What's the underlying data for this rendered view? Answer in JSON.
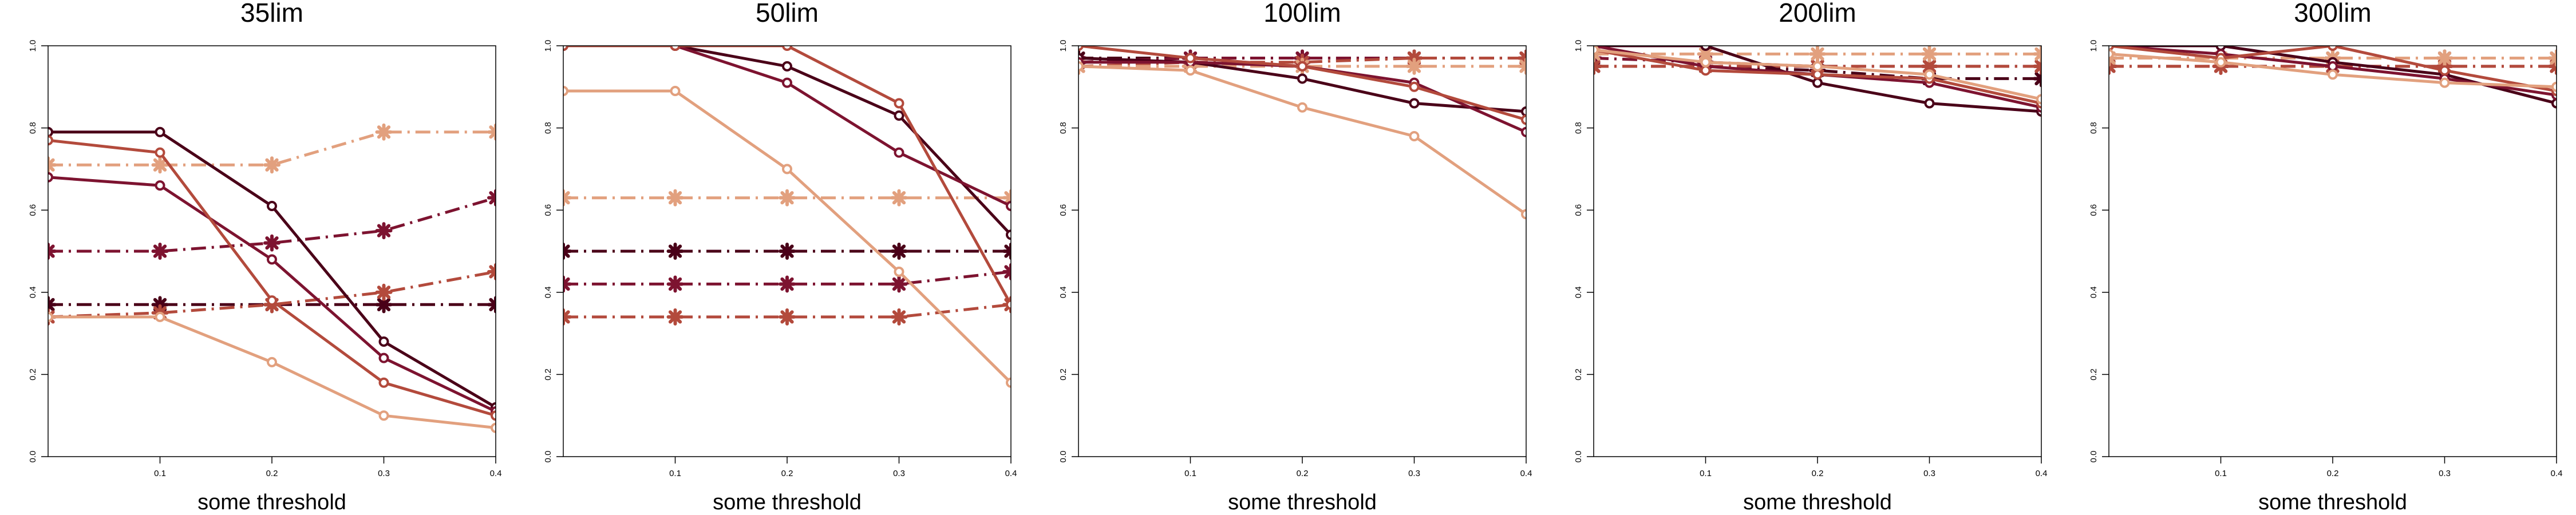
{
  "colors": {
    "s1": "#4a0018",
    "s2": "#7d1330",
    "s3": "#b34a3c",
    "s4": "#e2a07e"
  },
  "chart_data": [
    {
      "type": "line",
      "title": "35lim",
      "xlabel": "some threshold",
      "ylabel": "",
      "x": [
        0,
        0.1,
        0.2,
        0.3,
        0.4
      ],
      "xticks": [
        "0.1",
        "0.2",
        "0.3",
        "0.4"
      ],
      "ylim": [
        0,
        1
      ],
      "yticks": [
        "0.0",
        "0.2",
        "0.4",
        "0.6",
        "0.8",
        "1.0"
      ],
      "grid": false,
      "series": [
        {
          "style": "solid",
          "color": "s1",
          "marker": "circle",
          "values": [
            0.79,
            0.79,
            0.61,
            0.28,
            0.12
          ]
        },
        {
          "style": "solid",
          "color": "s2",
          "marker": "circle",
          "values": [
            0.68,
            0.66,
            0.48,
            0.24,
            0.11
          ]
        },
        {
          "style": "solid",
          "color": "s3",
          "marker": "circle",
          "values": [
            0.77,
            0.74,
            0.38,
            0.18,
            0.1
          ]
        },
        {
          "style": "solid",
          "color": "s4",
          "marker": "circle",
          "values": [
            0.34,
            0.34,
            0.23,
            0.1,
            0.07
          ]
        },
        {
          "style": "dashdot",
          "color": "s1",
          "marker": "star",
          "values": [
            0.37,
            0.37,
            0.37,
            0.37,
            0.37
          ]
        },
        {
          "style": "dashdot",
          "color": "s2",
          "marker": "star",
          "values": [
            0.5,
            0.5,
            0.52,
            0.55,
            0.63
          ]
        },
        {
          "style": "dashdot",
          "color": "s3",
          "marker": "star",
          "values": [
            0.34,
            0.35,
            0.37,
            0.4,
            0.45
          ]
        },
        {
          "style": "dashdot",
          "color": "s4",
          "marker": "star",
          "values": [
            0.71,
            0.71,
            0.71,
            0.79,
            0.79
          ]
        }
      ]
    },
    {
      "type": "line",
      "title": "50lim",
      "xlabel": "some threshold",
      "ylabel": "",
      "x": [
        0,
        0.1,
        0.2,
        0.3,
        0.4
      ],
      "xticks": [
        "0.1",
        "0.2",
        "0.3",
        "0.4"
      ],
      "ylim": [
        0,
        1
      ],
      "yticks": [
        "0.0",
        "0.2",
        "0.4",
        "0.6",
        "0.8",
        "1.0"
      ],
      "grid": false,
      "series": [
        {
          "style": "solid",
          "color": "s1",
          "marker": "circle",
          "values": [
            1.0,
            1.0,
            0.95,
            0.83,
            0.54
          ]
        },
        {
          "style": "solid",
          "color": "s2",
          "marker": "circle",
          "values": [
            1.0,
            1.0,
            0.91,
            0.74,
            0.61
          ]
        },
        {
          "style": "solid",
          "color": "s3",
          "marker": "circle",
          "values": [
            1.0,
            1.0,
            1.0,
            0.86,
            0.37
          ]
        },
        {
          "style": "solid",
          "color": "s4",
          "marker": "circle",
          "values": [
            0.89,
            0.89,
            0.7,
            0.45,
            0.18
          ]
        },
        {
          "style": "dashdot",
          "color": "s1",
          "marker": "star",
          "values": [
            0.5,
            0.5,
            0.5,
            0.5,
            0.5
          ]
        },
        {
          "style": "dashdot",
          "color": "s2",
          "marker": "star",
          "values": [
            0.42,
            0.42,
            0.42,
            0.42,
            0.45
          ]
        },
        {
          "style": "dashdot",
          "color": "s3",
          "marker": "star",
          "values": [
            0.34,
            0.34,
            0.34,
            0.34,
            0.37
          ]
        },
        {
          "style": "dashdot",
          "color": "s4",
          "marker": "star",
          "values": [
            0.63,
            0.63,
            0.63,
            0.63,
            0.63
          ]
        }
      ]
    },
    {
      "type": "line",
      "title": "100lim",
      "xlabel": "some threshold",
      "ylabel": "",
      "x": [
        0,
        0.1,
        0.2,
        0.3,
        0.4
      ],
      "xticks": [
        "0.1",
        "0.2",
        "0.3",
        "0.4"
      ],
      "ylim": [
        0,
        1
      ],
      "yticks": [
        "0.0",
        "0.2",
        "0.4",
        "0.6",
        "0.8",
        "1.0"
      ],
      "grid": false,
      "series": [
        {
          "style": "solid",
          "color": "s1",
          "marker": "circle",
          "values": [
            0.97,
            0.96,
            0.92,
            0.86,
            0.84
          ]
        },
        {
          "style": "solid",
          "color": "s2",
          "marker": "circle",
          "values": [
            0.96,
            0.96,
            0.95,
            0.91,
            0.79
          ]
        },
        {
          "style": "solid",
          "color": "s3",
          "marker": "circle",
          "values": [
            1.0,
            0.97,
            0.95,
            0.9,
            0.82
          ]
        },
        {
          "style": "solid",
          "color": "s4",
          "marker": "circle",
          "values": [
            0.95,
            0.94,
            0.85,
            0.78,
            0.59
          ]
        },
        {
          "style": "dashdot",
          "color": "s1",
          "marker": "star",
          "values": [
            0.97,
            0.97,
            0.97,
            0.97,
            0.97
          ]
        },
        {
          "style": "dashdot",
          "color": "s2",
          "marker": "star",
          "values": [
            0.96,
            0.97,
            0.97,
            0.97,
            0.97
          ]
        },
        {
          "style": "dashdot",
          "color": "s3",
          "marker": "star",
          "values": [
            0.95,
            0.96,
            0.96,
            0.97,
            0.97
          ]
        },
        {
          "style": "dashdot",
          "color": "s4",
          "marker": "star",
          "values": [
            0.95,
            0.95,
            0.95,
            0.95,
            0.95
          ]
        }
      ]
    },
    {
      "type": "line",
      "title": "200lim",
      "xlabel": "some threshold",
      "ylabel": "",
      "x": [
        0,
        0.1,
        0.2,
        0.3,
        0.4
      ],
      "xticks": [
        "0.1",
        "0.2",
        "0.3",
        "0.4"
      ],
      "ylim": [
        0,
        1
      ],
      "yticks": [
        "0.0",
        "0.2",
        "0.4",
        "0.6",
        "0.8",
        "1.0"
      ],
      "grid": false,
      "series": [
        {
          "style": "solid",
          "color": "s1",
          "marker": "circle",
          "values": [
            1.0,
            1.0,
            0.91,
            0.86,
            0.84
          ]
        },
        {
          "style": "solid",
          "color": "s2",
          "marker": "circle",
          "values": [
            1.0,
            0.95,
            0.93,
            0.91,
            0.85
          ]
        },
        {
          "style": "solid",
          "color": "s3",
          "marker": "circle",
          "values": [
            0.99,
            0.94,
            0.93,
            0.92,
            0.86
          ]
        },
        {
          "style": "solid",
          "color": "s4",
          "marker": "circle",
          "values": [
            0.99,
            0.96,
            0.95,
            0.93,
            0.87
          ]
        },
        {
          "style": "dashdot",
          "color": "s1",
          "marker": "star",
          "values": [
            0.95,
            0.95,
            0.94,
            0.92,
            0.92
          ]
        },
        {
          "style": "dashdot",
          "color": "s2",
          "marker": "star",
          "values": [
            0.97,
            0.96,
            0.95,
            0.95,
            0.95
          ]
        },
        {
          "style": "dashdot",
          "color": "s3",
          "marker": "star",
          "values": [
            0.95,
            0.95,
            0.95,
            0.95,
            0.95
          ]
        },
        {
          "style": "dashdot",
          "color": "s4",
          "marker": "star",
          "values": [
            0.98,
            0.98,
            0.98,
            0.98,
            0.98
          ]
        }
      ]
    },
    {
      "type": "line",
      "title": "300lim",
      "xlabel": "some threshold",
      "ylabel": "",
      "x": [
        0,
        0.1,
        0.2,
        0.3,
        0.4
      ],
      "xticks": [
        "0.1",
        "0.2",
        "0.3",
        "0.4"
      ],
      "ylim": [
        0,
        1
      ],
      "yticks": [
        "0.0",
        "0.2",
        "0.4",
        "0.6",
        "0.8",
        "1.0"
      ],
      "grid": false,
      "series": [
        {
          "style": "solid",
          "color": "s1",
          "marker": "circle",
          "values": [
            1.0,
            1.0,
            0.96,
            0.93,
            0.86
          ]
        },
        {
          "style": "solid",
          "color": "s2",
          "marker": "circle",
          "values": [
            1.0,
            0.98,
            0.95,
            0.92,
            0.88
          ]
        },
        {
          "style": "solid",
          "color": "s3",
          "marker": "circle",
          "values": [
            1.0,
            0.97,
            1.0,
            0.94,
            0.89
          ]
        },
        {
          "style": "solid",
          "color": "s4",
          "marker": "circle",
          "values": [
            0.98,
            0.96,
            0.93,
            0.91,
            0.9
          ]
        },
        {
          "style": "dashdot",
          "color": "s1",
          "marker": "star",
          "values": [
            0.97,
            0.97,
            0.97,
            0.97,
            0.97
          ]
        },
        {
          "style": "dashdot",
          "color": "s2",
          "marker": "star",
          "values": [
            0.95,
            0.95,
            0.95,
            0.95,
            0.95
          ]
        },
        {
          "style": "dashdot",
          "color": "s3",
          "marker": "star",
          "values": [
            0.95,
            0.95,
            0.95,
            0.95,
            0.95
          ]
        },
        {
          "style": "dashdot",
          "color": "s4",
          "marker": "star",
          "values": [
            0.97,
            0.97,
            0.97,
            0.97,
            0.97
          ]
        }
      ]
    }
  ]
}
